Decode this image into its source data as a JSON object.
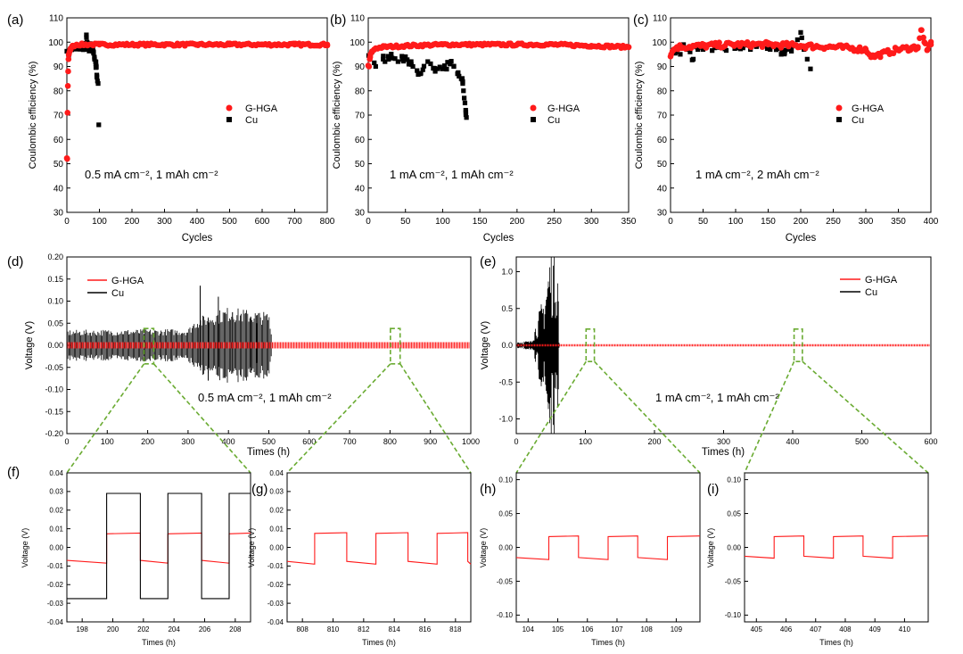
{
  "colors": {
    "ghga": "#ff1a1a",
    "cu": "#000000",
    "zoom": "#6aab32"
  },
  "panels": {
    "a": {
      "letter": "(a)",
      "ylabel": "Coulombic efficiency (%)",
      "xlabel": "Cycles",
      "annotation": "0.5 mA cm⁻², 1 mAh cm⁻²",
      "legend": [
        "G-HGA",
        "Cu"
      ],
      "xticks": [
        "0",
        "100",
        "200",
        "300",
        "400",
        "500",
        "600",
        "700",
        "800"
      ],
      "yticks": [
        "30",
        "40",
        "50",
        "60",
        "70",
        "80",
        "90",
        "100",
        "110"
      ]
    },
    "b": {
      "letter": "(b)",
      "ylabel": "Coulombic efficiency (%)",
      "xlabel": "Cycles",
      "annotation": "1 mA cm⁻², 1 mAh cm⁻²",
      "legend": [
        "G-HGA",
        "Cu"
      ],
      "xticks": [
        "0",
        "50",
        "100",
        "150",
        "200",
        "250",
        "300",
        "350"
      ],
      "yticks": [
        "30",
        "40",
        "50",
        "60",
        "70",
        "80",
        "90",
        "100",
        "110"
      ]
    },
    "c": {
      "letter": "(c)",
      "ylabel": "Coulombic efficiency (%)",
      "xlabel": "Cycles",
      "annotation": "1 mA cm⁻², 2 mAh cm⁻²",
      "legend": [
        "G-HGA",
        "Cu"
      ],
      "xticks": [
        "0",
        "50",
        "100",
        "150",
        "200",
        "250",
        "300",
        "350",
        "400"
      ],
      "yticks": [
        "30",
        "40",
        "50",
        "60",
        "70",
        "80",
        "90",
        "100",
        "110"
      ]
    },
    "d": {
      "letter": "(d)",
      "ylabel": "Voltage (V)",
      "xlabel": "Times (h)",
      "annotation": "0.5 mA cm⁻², 1 mAh cm⁻²",
      "legend": [
        "G-HGA",
        "Cu"
      ],
      "xticks": [
        "0",
        "100",
        "200",
        "300",
        "400",
        "500",
        "600",
        "700",
        "800",
        "900",
        "1000"
      ],
      "yticks": [
        "-0.20",
        "-0.15",
        "-0.10",
        "-0.05",
        "0.00",
        "0.05",
        "0.10",
        "0.15",
        "0.20"
      ]
    },
    "e": {
      "letter": "(e)",
      "ylabel": "Voltage (V)",
      "xlabel": "Times (h)",
      "annotation": "1 mA cm⁻², 1 mAh cm⁻²",
      "legend": [
        "G-HGA",
        "Cu"
      ],
      "xticks": [
        "0",
        "100",
        "200",
        "300",
        "400",
        "500",
        "600"
      ],
      "yticks": [
        "-1.0",
        "-0.5",
        "0.0",
        "0.5",
        "1.0"
      ]
    },
    "f": {
      "letter": "(f)",
      "ylabel": "Voltage (V)",
      "xlabel": "Times (h)",
      "xticks": [
        "198",
        "200",
        "202",
        "204",
        "206",
        "208"
      ],
      "yticks": [
        "-0.04",
        "-0.03",
        "-0.02",
        "-0.01",
        "0.00",
        "0.01",
        "0.02",
        "0.03",
        "0.04"
      ]
    },
    "g": {
      "letter": "(g)",
      "ylabel": "Voltage (V)",
      "xlabel": "Times (h)",
      "xticks": [
        "808",
        "810",
        "812",
        "814",
        "816",
        "818"
      ],
      "yticks": [
        "-0.04",
        "-0.03",
        "-0.02",
        "-0.01",
        "0.00",
        "0.01",
        "0.02",
        "0.03",
        "0.04"
      ]
    },
    "h": {
      "letter": "(h)",
      "ylabel": "Voltage (V)",
      "xlabel": "Times (h)",
      "xticks": [
        "104",
        "105",
        "106",
        "107",
        "108",
        "109"
      ],
      "yticks": [
        "-0.10",
        "-0.05",
        "0.00",
        "0.05",
        "0.10"
      ]
    },
    "i": {
      "letter": "(i)",
      "ylabel": "Voltage (V)",
      "xlabel": "Times (h)",
      "xticks": [
        "405",
        "406",
        "407",
        "408",
        "409",
        "410"
      ],
      "yticks": [
        "-0.10",
        "-0.05",
        "0.00",
        "0.05",
        "0.10"
      ]
    }
  },
  "chart_data": [
    {
      "id": "a",
      "type": "scatter",
      "xlim": [
        0,
        800
      ],
      "ylim": [
        30,
        110
      ],
      "series": [
        {
          "name": "G-HGA",
          "x": [
            1,
            2,
            3,
            4,
            5,
            6,
            8,
            10,
            12,
            15,
            20,
            30,
            50,
            100,
            200,
            300,
            400,
            500,
            600,
            700,
            800
          ],
          "y": [
            52,
            71,
            82,
            88,
            93,
            95,
            96,
            97,
            97.5,
            98,
            98.5,
            99,
            99,
            99,
            99,
            99,
            99,
            99,
            99,
            99,
            99
          ]
        },
        {
          "name": "Cu",
          "x": [
            5,
            10,
            20,
            30,
            40,
            50,
            55,
            60,
            62,
            65,
            70,
            75,
            80,
            82,
            85,
            88,
            90,
            92,
            94,
            96,
            98
          ],
          "y": [
            95,
            97,
            98,
            98,
            98,
            98,
            97,
            103,
            100,
            97,
            98,
            99,
            97,
            96,
            93,
            92,
            90,
            86,
            84,
            83,
            66
          ]
        }
      ]
    },
    {
      "id": "b",
      "type": "scatter",
      "xlim": [
        0,
        350
      ],
      "ylim": [
        30,
        110
      ],
      "series": [
        {
          "name": "G-HGA",
          "x": [
            1,
            2,
            3,
            5,
            8,
            10,
            20,
            50,
            100,
            150,
            200,
            250,
            300,
            350
          ],
          "y": [
            90,
            93,
            95,
            96,
            97,
            97.5,
            98,
            98.5,
            99,
            99,
            99,
            99,
            98.5,
            98
          ]
        },
        {
          "name": "Cu",
          "x": [
            5,
            10,
            20,
            30,
            40,
            50,
            60,
            70,
            80,
            90,
            100,
            110,
            115,
            120,
            122,
            125,
            127,
            128,
            129,
            130,
            131,
            132
          ],
          "y": [
            96,
            90,
            93,
            94,
            92,
            94,
            90,
            87,
            92,
            88,
            89,
            91,
            90,
            87,
            86,
            85,
            83,
            80,
            77,
            75,
            72,
            69
          ]
        }
      ]
    },
    {
      "id": "c",
      "type": "scatter",
      "xlim": [
        0,
        400
      ],
      "ylim": [
        30,
        110
      ],
      "series": [
        {
          "name": "G-HGA",
          "x": [
            1,
            5,
            10,
            50,
            100,
            150,
            200,
            250,
            300,
            310,
            350,
            380,
            385,
            390,
            395,
            400
          ],
          "y": [
            95,
            97,
            98,
            98.5,
            99,
            99,
            98.5,
            98,
            97,
            94,
            97,
            98,
            105,
            100,
            97,
            99
          ]
        },
        {
          "name": "Cu",
          "x": [
            5,
            10,
            15,
            20,
            25,
            30,
            35,
            40,
            45,
            50,
            100,
            150,
            170,
            185,
            195,
            200,
            205,
            210,
            215
          ],
          "y": [
            96,
            97,
            95,
            99,
            97,
            96,
            93,
            98,
            99,
            97,
            98,
            98,
            95,
            97,
            101,
            104,
            97,
            93,
            89
          ]
        }
      ]
    },
    {
      "id": "d",
      "type": "line",
      "xlim": [
        0,
        1000
      ],
      "ylim": [
        -0.2,
        0.2
      ],
      "series": [
        {
          "name": "G-HGA",
          "amplitude": 0.007,
          "xrange": [
            0,
            1000
          ]
        },
        {
          "name": "Cu",
          "amplitude_by_time": [
            [
              0,
              0.028
            ],
            [
              300,
              0.03
            ],
            [
              320,
              0.05
            ],
            [
              400,
              0.07
            ],
            [
              500,
              0.06
            ],
            [
              510,
              0.0
            ]
          ],
          "xrange": [
            0,
            510
          ]
        }
      ],
      "zoom_windows": [
        [
          197,
          209
        ],
        [
          807,
          819
        ]
      ]
    },
    {
      "id": "e",
      "type": "line",
      "xlim": [
        0,
        600
      ],
      "ylim": [
        -1.2,
        1.2
      ],
      "series": [
        {
          "name": "G-HGA",
          "amplitude": 0.015,
          "xrange": [
            0,
            600
          ]
        },
        {
          "name": "Cu",
          "amplitude_by_time": [
            [
              0,
              0.05
            ],
            [
              20,
              0.05
            ],
            [
              30,
              0.3
            ],
            [
              40,
              0.6
            ],
            [
              50,
              1.2
            ],
            [
              60,
              1.2
            ],
            [
              62,
              0.0
            ]
          ],
          "xrange": [
            0,
            62
          ]
        }
      ],
      "zoom_windows": [
        [
          104,
          110
        ],
        [
          405,
          411
        ]
      ]
    },
    {
      "id": "f",
      "type": "line",
      "xlim": [
        197,
        209
      ],
      "ylim": [
        -0.04,
        0.04
      ],
      "series": [
        {
          "name": "G-HGA",
          "step_times": [
            199.6,
            201.8,
            203.6,
            205.8,
            207.6
          ],
          "start_level": -0.007,
          "level": 0.0073
        },
        {
          "name": "Cu",
          "step_times": [
            199.6,
            201.8,
            203.6,
            205.8,
            207.6
          ],
          "start_level": -0.0275,
          "level": 0.029
        }
      ]
    },
    {
      "id": "g",
      "type": "line",
      "xlim": [
        807,
        819
      ],
      "ylim": [
        -0.04,
        0.04
      ],
      "series": [
        {
          "name": "G-HGA",
          "step_times": [
            808.8,
            810.9,
            812.8,
            814.9,
            816.8,
            818.8
          ],
          "start_level": -0.0075,
          "level": 0.0075
        }
      ]
    },
    {
      "id": "h",
      "type": "line",
      "xlim": [
        103.6,
        109.8
      ],
      "ylim": [
        -0.11,
        0.11
      ],
      "series": [
        {
          "name": "G-HGA",
          "step_times": [
            104.7,
            105.7,
            106.7,
            107.7,
            108.7
          ],
          "start_level": -0.015,
          "level": 0.016
        }
      ]
    },
    {
      "id": "i",
      "type": "line",
      "xlim": [
        404.6,
        410.8
      ],
      "ylim": [
        -0.11,
        0.11
      ],
      "series": [
        {
          "name": "G-HGA",
          "step_times": [
            405.6,
            406.6,
            407.6,
            408.6,
            409.6
          ],
          "start_level": -0.013,
          "level": 0.016
        }
      ]
    }
  ]
}
